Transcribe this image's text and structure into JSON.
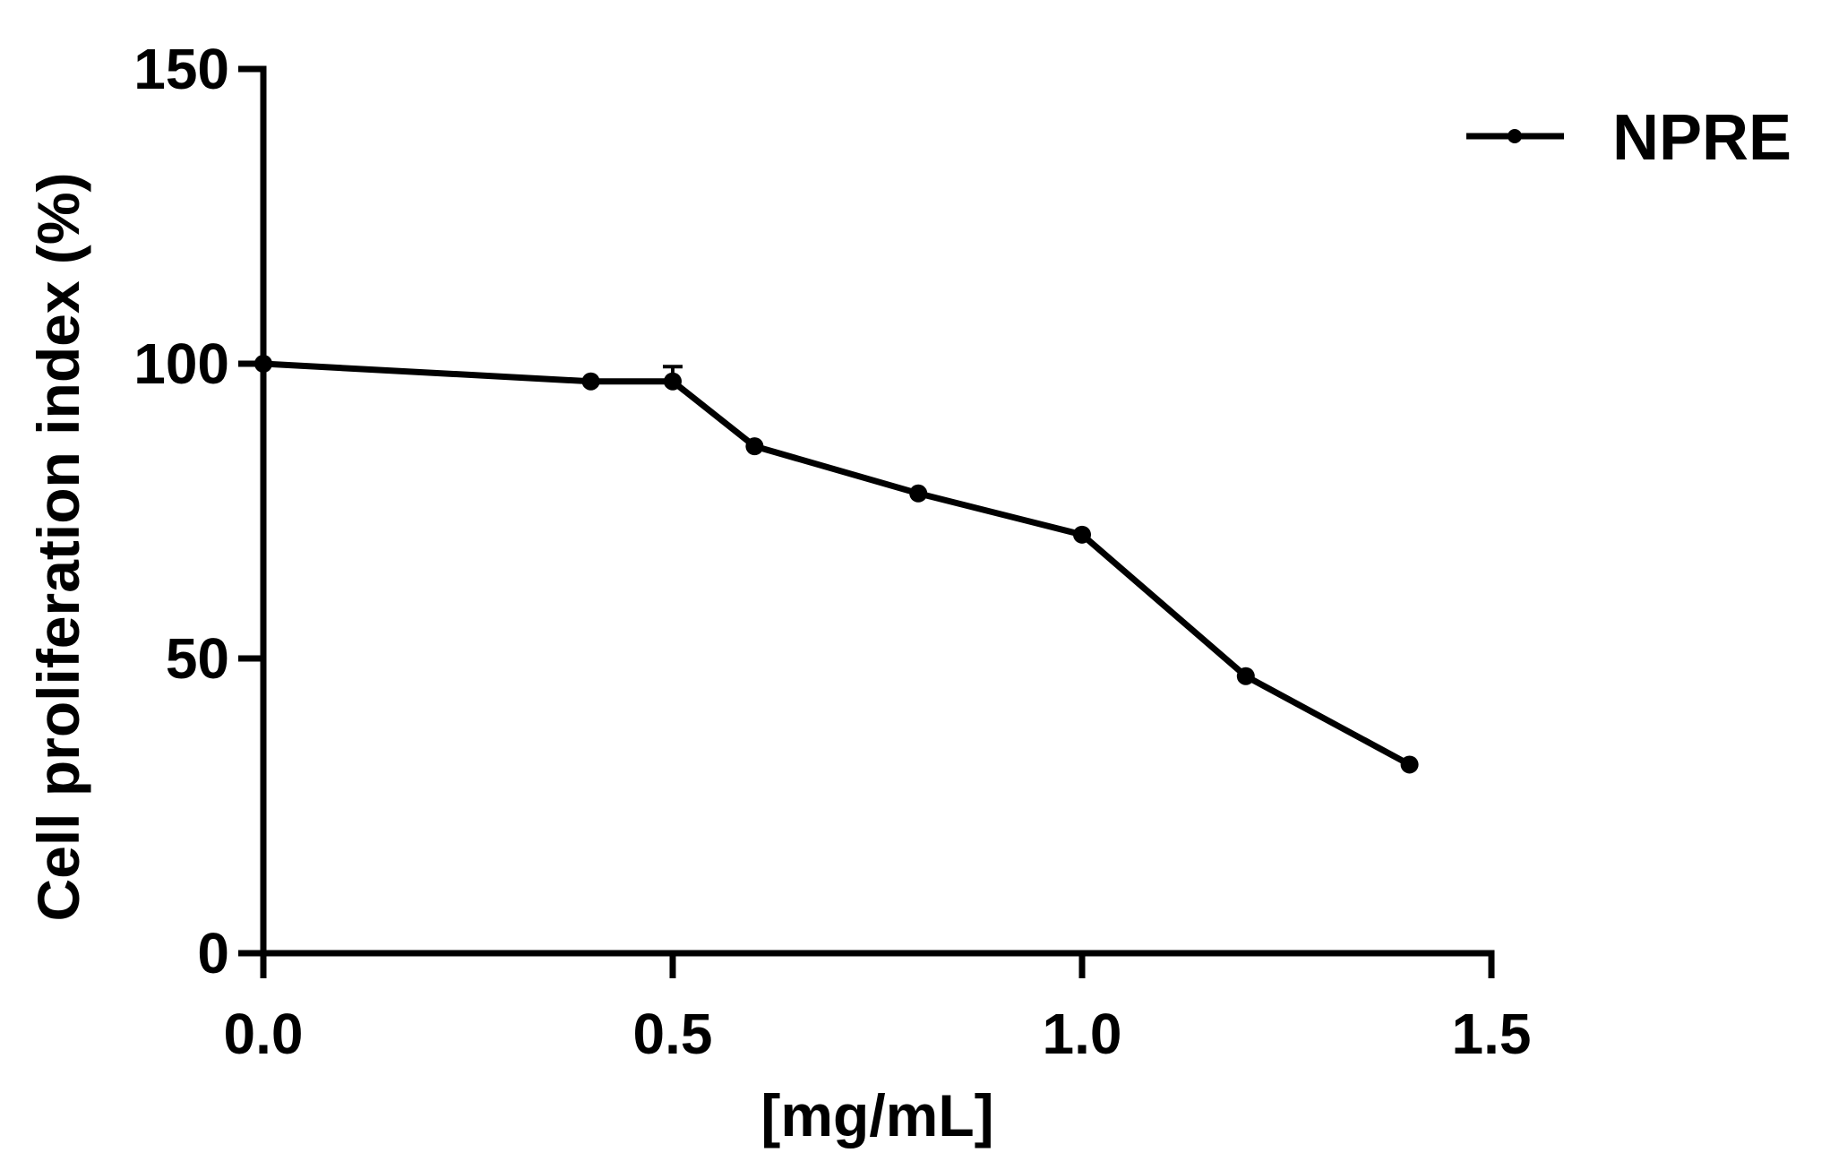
{
  "chart_data": {
    "type": "line",
    "xlabel": "[mg/mL]",
    "ylabel": "Cell proliferation index (%)",
    "xlim": [
      0,
      1.5
    ],
    "ylim": [
      0,
      150
    ],
    "x_ticks": [
      "0.0",
      "0.5",
      "1.0",
      "1.5"
    ],
    "y_ticks": [
      "0",
      "50",
      "100",
      "150"
    ],
    "grid": false,
    "legend": {
      "position": "top-right"
    },
    "series": [
      {
        "name": "NPRE",
        "color": "#000000",
        "x": [
          0.0,
          0.4,
          0.5,
          0.6,
          0.8,
          1.0,
          1.2,
          1.4
        ],
        "y": [
          100,
          97,
          97,
          86,
          78,
          71,
          47,
          32
        ],
        "error_upper": [
          0,
          0,
          2.5,
          0,
          0,
          0,
          0,
          0
        ]
      }
    ]
  }
}
